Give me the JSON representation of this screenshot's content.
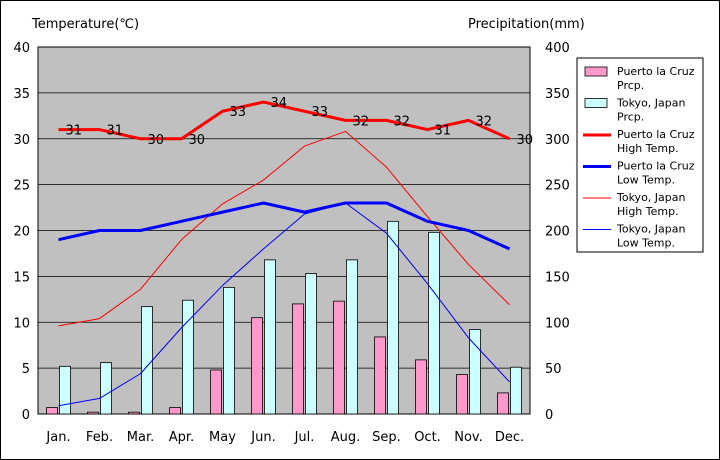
{
  "chart_data": {
    "type": "bar",
    "title": "",
    "y_left_label": "Temperature(℃)",
    "y_right_label": "Precipitation(mm)",
    "ylim_left": [
      0,
      40
    ],
    "ylim_right": [
      0,
      400
    ],
    "y_left_ticks": [
      0,
      5,
      10,
      15,
      20,
      25,
      30,
      35,
      40
    ],
    "y_right_ticks": [
      0,
      50,
      100,
      150,
      200,
      250,
      300,
      350,
      400
    ],
    "categories": [
      "Jan.",
      "Feb.",
      "Mar.",
      "Apr.",
      "May",
      "Jun.",
      "Jul.",
      "Aug.",
      "Sep.",
      "Oct.",
      "Nov.",
      "Dec."
    ],
    "grid": true,
    "legend_position": "right",
    "plot_background": "#c0c0c0",
    "bar_series": [
      {
        "name": "Puerto la Cruz Prcp.",
        "legend": [
          "Puerto la Cruz",
          "Prcp."
        ],
        "color": "#ff99cc",
        "values": [
          7,
          2,
          2,
          7,
          48,
          105,
          120,
          123,
          84,
          59,
          43,
          23
        ]
      },
      {
        "name": "Tokyo, Japan Prcp.",
        "legend": [
          "Tokyo, Japan",
          "Prcp."
        ],
        "color": "#ccffff",
        "values": [
          52,
          56,
          117,
          124,
          138,
          168,
          153,
          168,
          210,
          198,
          92,
          51
        ]
      }
    ],
    "line_series": [
      {
        "name": "Puerto la Cruz High Temp.",
        "legend": [
          "Puerto la Cruz",
          "High Temp."
        ],
        "color": "#ff0000",
        "width": 3,
        "values": [
          31,
          31,
          30,
          30,
          33,
          34,
          33,
          32,
          32,
          31,
          32,
          30
        ],
        "data_labels": [
          "31",
          "31",
          "30",
          "30",
          "33",
          "34",
          "33",
          "32",
          "32",
          "31",
          "32",
          "30"
        ]
      },
      {
        "name": "Puerto la Cruz Low Temp.",
        "legend": [
          "Puerto la Cruz",
          "Low Temp."
        ],
        "color": "#0000ff",
        "width": 3,
        "values": [
          19,
          20,
          20,
          21,
          22,
          23,
          22,
          23,
          23,
          21,
          20,
          18
        ]
      },
      {
        "name": "Tokyo, Japan High Temp.",
        "legend": [
          "Tokyo, Japan",
          "High Temp."
        ],
        "color": "#ff0000",
        "width": 1,
        "values": [
          9.6,
          10.4,
          13.6,
          19.0,
          22.9,
          25.5,
          29.2,
          30.8,
          26.9,
          21.5,
          16.3,
          11.9
        ]
      },
      {
        "name": "Tokyo, Japan Low Temp.",
        "legend": [
          "Tokyo, Japan",
          "Low Temp."
        ],
        "color": "#0000ff",
        "width": 1,
        "values": [
          0.9,
          1.7,
          4.4,
          9.4,
          14.0,
          18.0,
          21.8,
          23.0,
          19.7,
          14.2,
          8.3,
          3.5
        ]
      }
    ]
  }
}
